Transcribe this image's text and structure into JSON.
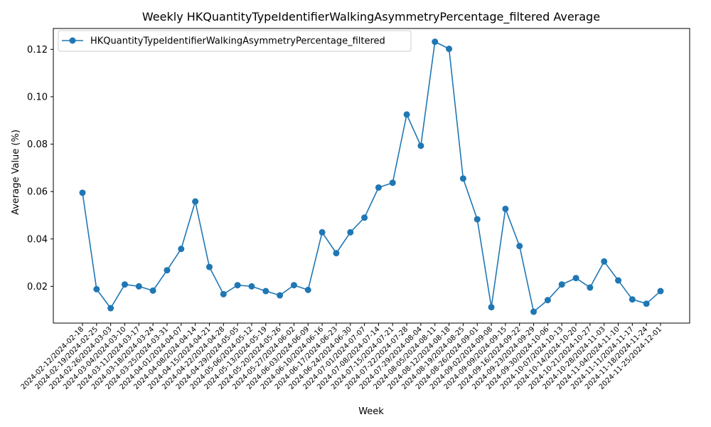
{
  "chart_data": {
    "type": "line",
    "title": "Weekly HKQuantityTypeIdentifierWalkingAsymmetryPercentage_filtered Average",
    "xlabel": "Week",
    "ylabel": "Average Value (%)",
    "ylim": [
      0.0045,
      0.1288
    ],
    "yticks": [
      "0.02",
      "0.04",
      "0.06",
      "0.08",
      "0.10",
      "0.12"
    ],
    "ytick_values": [
      0.02,
      0.04,
      0.06,
      0.08,
      0.1,
      0.12
    ],
    "grid": false,
    "legend_position": "top-left",
    "categories": [
      "2024-02-12/2024-02-18",
      "2024-02-19/2024-02-25",
      "2024-02-26/2024-03-03",
      "2024-03-04/2024-03-10",
      "2024-03-11/2024-03-17",
      "2024-03-18/2024-03-24",
      "2024-03-25/2024-03-31",
      "2024-04-01/2024-04-07",
      "2024-04-08/2024-04-14",
      "2024-04-15/2024-04-21",
      "2024-04-22/2024-04-28",
      "2024-04-29/2024-05-05",
      "2024-05-06/2024-05-12",
      "2024-05-13/2024-05-19",
      "2024-05-20/2024-05-26",
      "2024-05-27/2024-06-02",
      "2024-06-03/2024-06-09",
      "2024-06-10/2024-06-16",
      "2024-06-17/2024-06-23",
      "2024-06-24/2024-06-30",
      "2024-07-01/2024-07-07",
      "2024-07-08/2024-07-14",
      "2024-07-15/2024-07-21",
      "2024-07-22/2024-07-28",
      "2024-07-29/2024-08-04",
      "2024-08-05/2024-08-11",
      "2024-08-12/2024-08-18",
      "2024-08-19/2024-08-25",
      "2024-08-26/2024-09-01",
      "2024-09-02/2024-09-08",
      "2024-09-09/2024-09-15",
      "2024-09-16/2024-09-22",
      "2024-09-23/2024-09-29",
      "2024-09-30/2024-10-06",
      "2024-10-07/2024-10-13",
      "2024-10-14/2024-10-20",
      "2024-10-21/2024-10-27",
      "2024-10-28/2024-11-03",
      "2024-11-04/2024-11-10",
      "2024-11-11/2024-11-17",
      "2024-11-18/2024-11-24",
      "2024-11-25/2024-12-01"
    ],
    "series": [
      {
        "name": "HKQuantityTypeIdentifierWalkingAsymmetryPercentage_filtered",
        "color": "#1f77b4",
        "values": [
          0.0595,
          0.0188,
          0.0108,
          0.0208,
          0.02,
          0.0182,
          0.0268,
          0.0358,
          0.0558,
          0.0282,
          0.0167,
          0.0205,
          0.02,
          0.018,
          0.0162,
          0.0205,
          0.0185,
          0.0428,
          0.034,
          0.0428,
          0.049,
          0.0617,
          0.0637,
          0.0925,
          0.0793,
          0.1232,
          0.1202,
          0.0655,
          0.0483,
          0.0112,
          0.0527,
          0.037,
          0.0093,
          0.0142,
          0.0208,
          0.0235,
          0.0195,
          0.0305,
          0.0225,
          0.0145,
          0.0127,
          0.018
        ]
      }
    ]
  }
}
